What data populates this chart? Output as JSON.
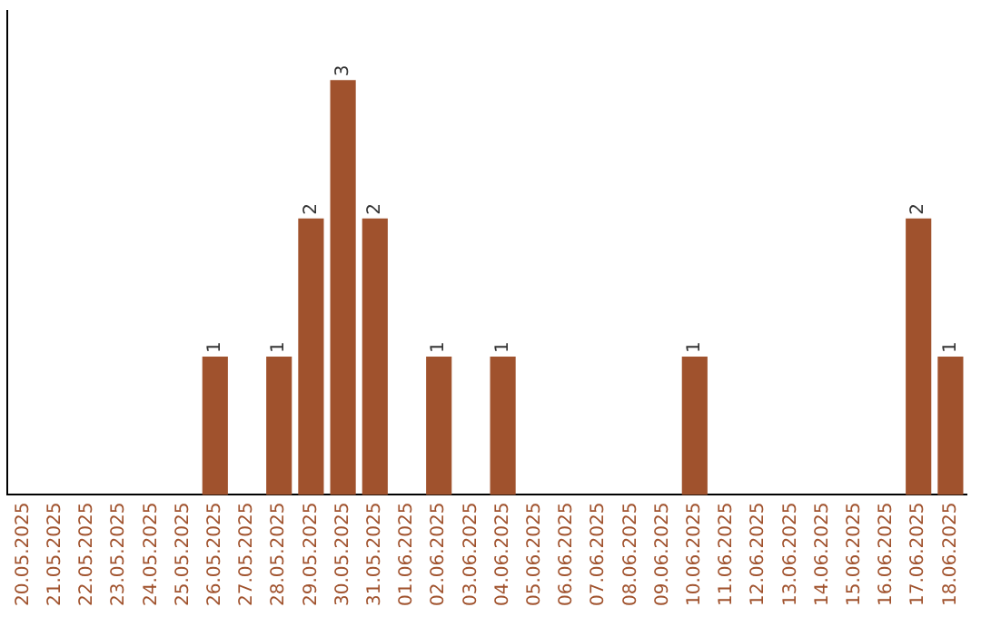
{
  "chart_data": {
    "type": "bar",
    "categories": [
      "20.05.2025",
      "21.05.2025",
      "22.05.2025",
      "23.05.2025",
      "24.05.2025",
      "25.05.2025",
      "26.05.2025",
      "27.05.2025",
      "28.05.2025",
      "29.05.2025",
      "30.05.2025",
      "31.05.2025",
      "01.06.2025",
      "02.06.2025",
      "03.06.2025",
      "04.06.2025",
      "05.06.2025",
      "06.06.2025",
      "07.06.2025",
      "08.06.2025",
      "09.06.2025",
      "10.06.2025",
      "11.06.2025",
      "12.06.2025",
      "13.06.2025",
      "14.06.2025",
      "15.06.2025",
      "16.06.2025",
      "17.06.2025",
      "18.06.2025"
    ],
    "values": [
      0,
      0,
      0,
      0,
      0,
      0,
      1,
      0,
      1,
      2,
      3,
      2,
      0,
      1,
      0,
      1,
      0,
      0,
      0,
      0,
      0,
      1,
      0,
      0,
      0,
      0,
      0,
      0,
      2,
      1
    ],
    "value_labels": [
      null,
      null,
      null,
      null,
      null,
      null,
      "1",
      null,
      "1",
      "2",
      "3",
      "2",
      null,
      "1",
      null,
      "1",
      null,
      null,
      null,
      null,
      null,
      "1",
      null,
      null,
      null,
      null,
      null,
      null,
      "2",
      "1"
    ],
    "color": "#a0522d",
    "grid": false,
    "legend": false,
    "tick_labels": "x"
  }
}
